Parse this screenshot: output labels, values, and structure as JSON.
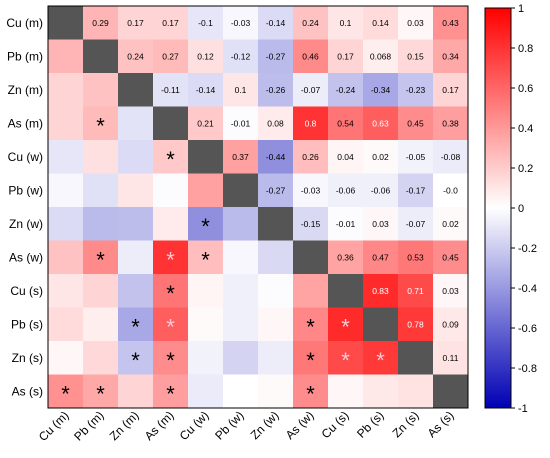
{
  "chart_data": {
    "type": "heatmap",
    "row_labels": [
      "Cu (m)",
      "Pb (m)",
      "Zn (m)",
      "As (m)",
      "Cu (w)",
      "Pb (w)",
      "Zn  (w)",
      "As (w)",
      "Cu  (s)",
      "Pb (s)",
      "Zn (s)",
      "As (s)"
    ],
    "col_labels": [
      "Cu (m)",
      "Pb (m)",
      "Zn (m)",
      "As (m)",
      "Cu (w)",
      "Pb (w)",
      "Zn (w)",
      "As (w)",
      "Cu  (s)",
      "Pb (s)",
      "Zn (s)",
      "As (s)"
    ],
    "matrix": [
      [
        null,
        0.29,
        0.17,
        0.17,
        -0.1,
        -0.03,
        -0.14,
        0.24,
        0.1,
        0.14,
        0.03,
        0.43
      ],
      [
        0.29,
        null,
        0.24,
        0.27,
        0.12,
        -0.12,
        -0.27,
        0.46,
        0.17,
        0.068,
        0.15,
        0.34
      ],
      [
        0.17,
        0.24,
        null,
        -0.11,
        -0.14,
        0.1,
        -0.26,
        -0.07,
        -0.24,
        -0.34,
        -0.23,
        0.17
      ],
      [
        0.17,
        0.27,
        -0.11,
        null,
        0.21,
        -0.01,
        0.08,
        0.8,
        0.54,
        0.63,
        0.45,
        0.38
      ],
      [
        -0.1,
        0.12,
        -0.14,
        0.21,
        null,
        0.37,
        -0.44,
        0.26,
        0.04,
        0.02,
        -0.05,
        -0.08
      ],
      [
        -0.03,
        -0.12,
        0.1,
        -0.01,
        0.37,
        null,
        -0.27,
        -0.03,
        -0.06,
        -0.06,
        -0.17,
        -0.0
      ],
      [
        -0.14,
        -0.27,
        -0.26,
        0.08,
        -0.44,
        -0.27,
        null,
        -0.15,
        -0.01,
        0.03,
        -0.07,
        0.02
      ],
      [
        0.24,
        0.46,
        -0.07,
        0.8,
        0.26,
        -0.03,
        -0.15,
        null,
        0.36,
        0.47,
        0.53,
        0.45
      ],
      [
        0.1,
        0.17,
        -0.24,
        0.54,
        0.04,
        -0.06,
        -0.01,
        0.36,
        null,
        0.83,
        0.71,
        0.03
      ],
      [
        0.14,
        0.068,
        -0.34,
        0.63,
        0.02,
        -0.06,
        0.03,
        0.47,
        0.83,
        null,
        0.78,
        0.09
      ],
      [
        0.03,
        0.15,
        -0.23,
        0.45,
        -0.05,
        -0.17,
        -0.07,
        0.53,
        0.71,
        0.78,
        null,
        0.11
      ],
      [
        0.43,
        0.34,
        0.17,
        0.38,
        -0.08,
        -0.0,
        0.02,
        0.45,
        0.03,
        0.09,
        0.11,
        null
      ]
    ],
    "cell_labels": [
      [
        "",
        "0.29",
        "0.17",
        "0.17",
        "-0.1",
        "-0.03",
        "-0.14",
        "0.24",
        "0.1",
        "0.14",
        "0.03",
        "0.43"
      ],
      [
        "",
        "",
        "0.24",
        "0.27",
        "0.12",
        "-0.12",
        "-0.27",
        "0.46",
        "0.17",
        "0.068",
        "0.15",
        "0.34"
      ],
      [
        "",
        "",
        "",
        "-0.11",
        "-0.14",
        "0.1",
        "-0.26",
        "-0.07",
        "-0.24",
        "-0.34",
        "-0.23",
        "0.17"
      ],
      [
        "",
        "*",
        "",
        "",
        "0.21",
        "-0.01",
        "0.08",
        "0.8",
        "0.54",
        "0.63",
        "0.45",
        "0.38"
      ],
      [
        "",
        "",
        "",
        "*",
        "",
        "0.37",
        "-0.44",
        "0.26",
        "0.04",
        "0.02",
        "-0.05",
        "-0.08"
      ],
      [
        "",
        "",
        "",
        "",
        "",
        "",
        "-0.27",
        "-0.03",
        "-0.06",
        "-0.06",
        "-0.17",
        "-0.0"
      ],
      [
        "",
        "",
        "",
        "",
        "*",
        "",
        "",
        "-0.15",
        "-0.01",
        "0.03",
        "-0.07",
        "0.02"
      ],
      [
        "",
        "*",
        "",
        "*",
        "*",
        "",
        "",
        "",
        "0.36",
        "0.47",
        "0.53",
        "0.45"
      ],
      [
        "",
        "",
        "",
        "*",
        "",
        "",
        "",
        "",
        "",
        "0.83",
        "0.71",
        "0.03"
      ],
      [
        "",
        "",
        "*",
        "*",
        "",
        "",
        "",
        "*",
        "*",
        "",
        "0.78",
        "0.09"
      ],
      [
        "",
        "",
        "*",
        "*",
        "",
        "",
        "",
        "*",
        "*",
        "*",
        "",
        "0.11"
      ],
      [
        "*",
        "*",
        "",
        "*",
        "",
        "",
        "",
        "*",
        "",
        "",
        "",
        ""
      ]
    ],
    "diagonal_color": "#555555",
    "colorscale": {
      "min": -1,
      "max": 1,
      "ticks": [
        1,
        0.8,
        0.6,
        0.4,
        0.2,
        0,
        -0.2,
        -0.4,
        -0.6,
        -0.8,
        -1
      ],
      "tick_labels": [
        "1",
        "0.8",
        "0.6",
        "0.4",
        "0.2",
        "0",
        "-0.2",
        "-0.4",
        "-0.6",
        "-0.8",
        "-1"
      ],
      "colors": {
        "low": "#0000b4",
        "mid": "#ffffff",
        "high": "#ff0000"
      }
    }
  }
}
